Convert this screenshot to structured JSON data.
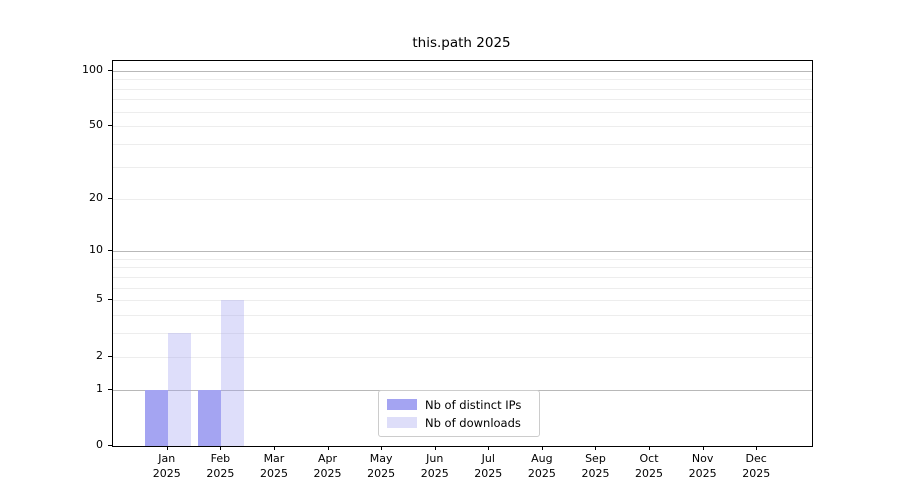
{
  "chart_data": {
    "type": "bar",
    "title": "this.path 2025",
    "categories": [
      "Jan",
      "Feb",
      "Mar",
      "Apr",
      "May",
      "Jun",
      "Jul",
      "Aug",
      "Sep",
      "Oct",
      "Nov",
      "Dec"
    ],
    "category_year": "2025",
    "series": [
      {
        "name": "Nb of distinct IPs",
        "color": "#a4a4f2",
        "fill": "rgba(164,164,242,1)",
        "values": [
          1,
          1,
          0,
          0,
          0,
          0,
          0,
          0,
          0,
          0,
          0,
          0
        ]
      },
      {
        "name": "Nb of downloads",
        "color": "#dedef9",
        "fill": "rgba(164,164,242,0.36)",
        "values": [
          3,
          5,
          0,
          0,
          0,
          0,
          0,
          0,
          0,
          0,
          0,
          0
        ]
      }
    ],
    "yscale": "log1p",
    "ylim": [
      0,
      113
    ],
    "ytick_values": [
      0,
      1,
      2,
      5,
      10,
      20,
      50,
      100
    ],
    "grid_values": [
      1,
      2,
      3,
      4,
      5,
      6,
      7,
      8,
      9,
      10,
      20,
      30,
      40,
      50,
      60,
      70,
      80,
      90,
      100
    ],
    "major_grid_values": [
      1,
      10,
      100
    ],
    "grid": true,
    "legend_position": "lower center",
    "colors": {
      "major_grid": "#b8b8b8",
      "minor_grid": "#ededed",
      "spine": "#000000",
      "background": "#ffffff"
    }
  }
}
